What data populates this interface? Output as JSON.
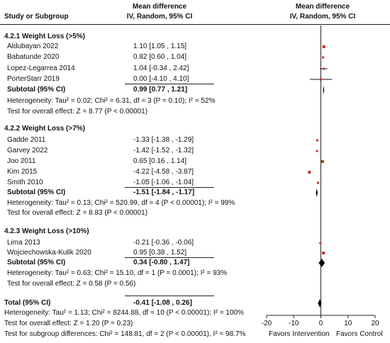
{
  "header": {
    "study_label": "Study or Subgroup",
    "md_title": "Mean difference",
    "md_method": "IV, Random, 95% CI",
    "plot_title": "Mean difference",
    "plot_method": "IV, Random, 95% CI"
  },
  "groups": [
    {
      "title": "4.2.1 Weight Loss (>5%)",
      "studies": [
        {
          "name": "Aldubayan 2022",
          "ci": "1.10 [1.05 , 1.15]"
        },
        {
          "name": "Babatunde 2020",
          "ci": "0.82 [0.60 , 1.04]"
        },
        {
          "name": "Lopez-Legarrea 2014",
          "ci": "1.04 [-0.34 , 2.42]"
        },
        {
          "name": "PorterStarr 2019",
          "ci": "0.00 [-4.10 , 4.10]"
        }
      ],
      "subtotal_label": "Subtotal (95% CI)",
      "subtotal_ci": "0.99 [0.77 , 1.21]",
      "heterogeneity": "Heterogeneity: Tau² = 0.02; Chi² = 6.31, df = 3 (P = 0.10); I² = 52%",
      "overall": "Test for overall effect: Z = 8.77 (P < 0.00001)"
    },
    {
      "title": "4.2.2 Weight Loss (>7%)",
      "studies": [
        {
          "name": "Gadde 2011",
          "ci": "-1.33 [-1.38 , -1.29]"
        },
        {
          "name": "Garvey 2022",
          "ci": "-1.42 [-1.52 , -1.32]"
        },
        {
          "name": "Joo 2011",
          "ci": "0.65 [0.16 , 1.14]"
        },
        {
          "name": "Kim 2015",
          "ci": "-4.22 [-4.58 , -3.87]"
        },
        {
          "name": "Smith 2010",
          "ci": "-1.05 [-1.06 , -1.04]"
        }
      ],
      "subtotal_label": "Subtotal (95% CI)",
      "subtotal_ci": "-1.51 [-1.84 , -1.17]",
      "heterogeneity": "Heterogeneity: Tau² = 0.13; Chi² = 520.99, df = 4 (P < 0.00001); I² = 99%",
      "overall": "Test for overall effect: Z = 8.83 (P < 0.00001)"
    },
    {
      "title": "4.2.3 Weight Loss (>10%)",
      "studies": [
        {
          "name": "Lima 2013",
          "ci": "-0.21 [-0.36 , -0.06]"
        },
        {
          "name": "Wojciechowska-Kulik 2020",
          "ci": "0.95 [0.38 , 1.52]"
        }
      ],
      "subtotal_label": "Subtotal (95% CI)",
      "subtotal_ci": "0.34 [-0.80 , 1.47]",
      "heterogeneity": "Heterogeneity: Tau² = 0.63; Chi² = 15.10, df = 1 (P = 0.0001); I² = 93%",
      "overall": "Test for overall effect: Z = 0.58 (P = 0.56)"
    }
  ],
  "total": {
    "label": "Total (95% CI)",
    "ci": "-0.41 [-1.08 , 0.26]",
    "heterogeneity": "Heterogeneity: Tau² = 1.13; Chi² = 8244.88, df = 10 (P < 0.00001); I² = 100%",
    "overall": "Test for overall effect: Z = 1.20 (P = 0.23)",
    "subgroup": "Test for subgroup differences: Chi² = 148.81, df = 2 (P < 0.00001), I² = 98.7%"
  },
  "axis": {
    "favors_left": "Favors Intervention",
    "favors_right": "Favors Control"
  },
  "colors": {
    "study_marker": "#c0392b",
    "ci_line": "#111111",
    "summary_diamond": "#000000"
  },
  "chart_data": {
    "type": "forest",
    "xlim": [
      -20,
      20
    ],
    "xticks": [
      -20,
      -10,
      0,
      10,
      20
    ],
    "reference_line": 0,
    "studies": [
      {
        "name": "Aldubayan 2022",
        "md": 1.1,
        "lo": 1.05,
        "hi": 1.15
      },
      {
        "name": "Babatunde 2020",
        "md": 0.82,
        "lo": 0.6,
        "hi": 1.04
      },
      {
        "name": "Lopez-Legarrea 2014",
        "md": 1.04,
        "lo": -0.34,
        "hi": 2.42
      },
      {
        "name": "PorterStarr 2019",
        "md": 0.0,
        "lo": -4.1,
        "hi": 4.1
      },
      {
        "name": "Gadde 2011",
        "md": -1.33,
        "lo": -1.38,
        "hi": -1.29
      },
      {
        "name": "Garvey 2022",
        "md": -1.42,
        "lo": -1.52,
        "hi": -1.32
      },
      {
        "name": "Joo 2011",
        "md": 0.65,
        "lo": 0.16,
        "hi": 1.14
      },
      {
        "name": "Kim 2015",
        "md": -4.22,
        "lo": -4.58,
        "hi": -3.87
      },
      {
        "name": "Smith 2010",
        "md": -1.05,
        "lo": -1.06,
        "hi": -1.04
      },
      {
        "name": "Lima 2013",
        "md": -0.21,
        "lo": -0.36,
        "hi": -0.06
      },
      {
        "name": "Wojciechowska-Kulik 2020",
        "md": 0.95,
        "lo": 0.38,
        "hi": 1.52
      }
    ],
    "subtotals": [
      {
        "name": "Subtotal 4.2.1",
        "md": 0.99,
        "lo": 0.77,
        "hi": 1.21
      },
      {
        "name": "Subtotal 4.2.2",
        "md": -1.51,
        "lo": -1.84,
        "hi": -1.17
      },
      {
        "name": "Subtotal 4.2.3",
        "md": 0.34,
        "lo": -0.8,
        "hi": 1.47
      }
    ],
    "total": {
      "name": "Total",
      "md": -0.41,
      "lo": -1.08,
      "hi": 0.26
    }
  }
}
